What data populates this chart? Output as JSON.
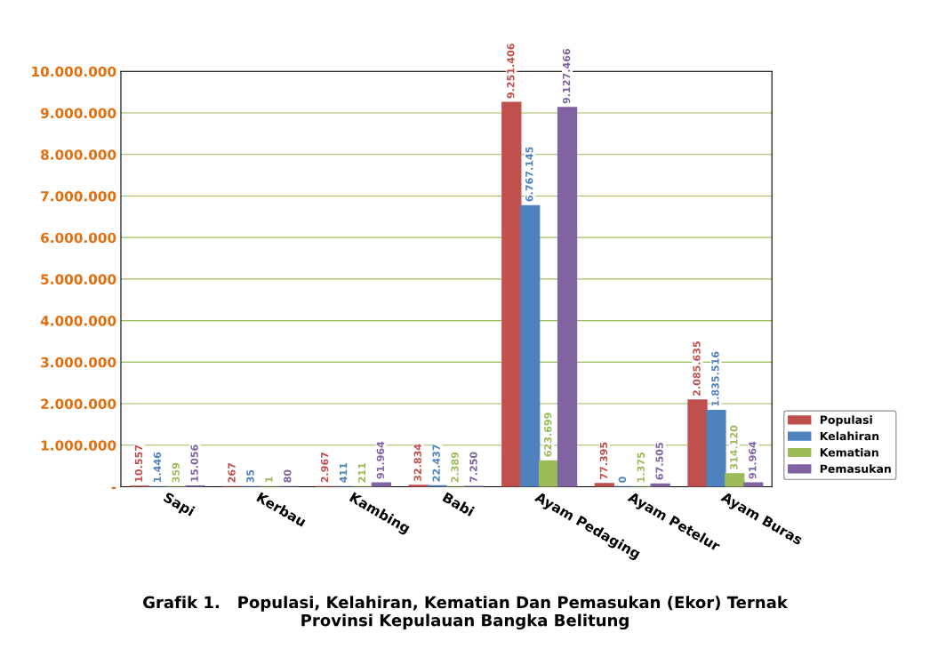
{
  "chart_data": {
    "type": "bar",
    "title": "Grafik 1.   Populasi, Kelahiran, Kematian Dan Pemasukan (Ekor) Ternak\nProvinsi Kepulauan Bangka Belitung",
    "categories": [
      "Sapi",
      "Kerbau",
      "Kambing",
      "Babi",
      "Ayam Pedaging",
      "Ayam Petelur",
      "Ayam Buras"
    ],
    "series": [
      {
        "name": "Populasi",
        "color": "#c0504d",
        "values": [
          10557,
          267,
          2967,
          32834,
          9251406,
          77395,
          2085635
        ],
        "value_labels": [
          "10.557",
          "267",
          "2.967",
          "32.834",
          "9.251.406",
          "77.395",
          "2.085.635"
        ]
      },
      {
        "name": "Kelahiran",
        "color": "#4f81bd",
        "values": [
          1446,
          35,
          411,
          22437,
          6767145,
          0,
          1835516
        ],
        "value_labels": [
          "1.446",
          "35",
          "411",
          "22.437",
          "6.767.145",
          "0",
          "1.835.516"
        ]
      },
      {
        "name": "Kematian",
        "color": "#9bbb59",
        "values": [
          359,
          1,
          211,
          2389,
          623699,
          1375,
          314120
        ],
        "value_labels": [
          "359",
          "1",
          "211",
          "2.389",
          "623.699",
          "1.375",
          "314.120"
        ]
      },
      {
        "name": "Pemasukan",
        "color": "#8064a2",
        "values": [
          15056,
          80,
          91964,
          7250,
          9127466,
          67505,
          91964
        ],
        "value_labels": [
          "15.056",
          "80",
          "91.964",
          "7.250",
          "9.127.466",
          "67.505",
          "91.964"
        ]
      }
    ],
    "ylim": [
      0,
      10000000
    ],
    "yticks": [
      {
        "value": 0,
        "label": "-"
      },
      {
        "value": 1000000,
        "label": "1.000.000"
      },
      {
        "value": 2000000,
        "label": "2.000.000"
      },
      {
        "value": 3000000,
        "label": "3.000.000"
      },
      {
        "value": 4000000,
        "label": "4.000.000"
      },
      {
        "value": 5000000,
        "label": "5.000.000"
      },
      {
        "value": 6000000,
        "label": "6.000.000"
      },
      {
        "value": 7000000,
        "label": "7.000.000"
      },
      {
        "value": 8000000,
        "label": "8.000.000"
      },
      {
        "value": 9000000,
        "label": "9.000.000"
      },
      {
        "value": 10000000,
        "label": "10.000.000"
      }
    ],
    "grid": "y",
    "legend": "right"
  }
}
